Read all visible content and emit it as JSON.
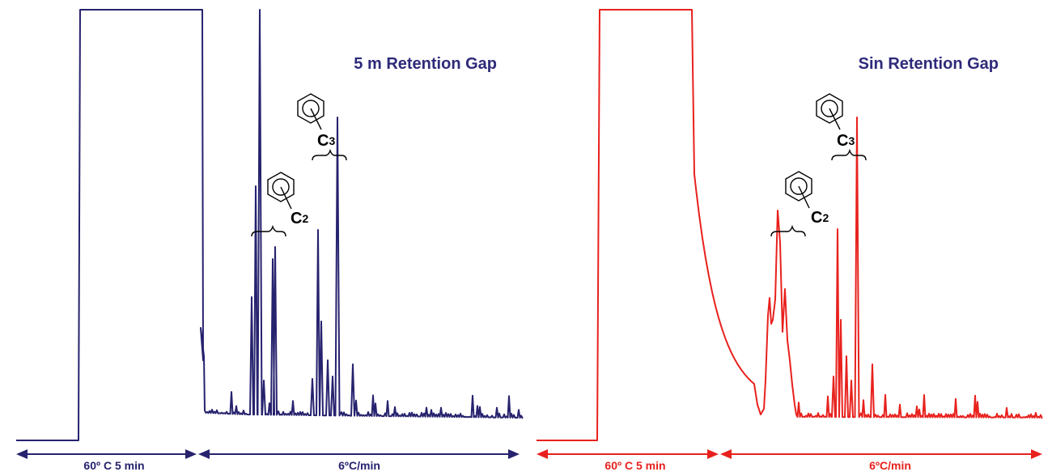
{
  "chart_data": [
    {
      "type": "line",
      "title": "5 m Retention Gap",
      "color": "#26226e",
      "ylim": [
        0,
        100
      ],
      "segments": [
        {
          "label": "60º C 5 min"
        },
        {
          "label": "6ºC/min"
        }
      ],
      "annotations": [
        {
          "text": "C",
          "sub": "2"
        },
        {
          "text": "C",
          "sub": "3"
        }
      ]
    },
    {
      "type": "line",
      "title": "Sin Retention Gap",
      "color": "#e8211d",
      "ylim": [
        0,
        100
      ],
      "segments": [
        {
          "label": "60º C 5 min"
        },
        {
          "label": "6ºC/min"
        }
      ],
      "annotations": [
        {
          "text": "C",
          "sub": "2"
        },
        {
          "text": "C",
          "sub": "3"
        }
      ]
    }
  ]
}
